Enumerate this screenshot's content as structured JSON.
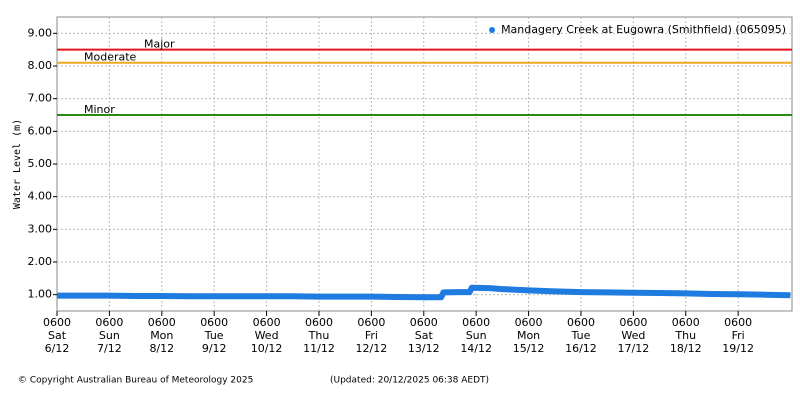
{
  "chart_data": {
    "type": "line",
    "y_label": "Water Level (m)",
    "ylim": [
      0.5,
      9.5
    ],
    "yticks": [
      {
        "value": 1,
        "label": "1.00"
      },
      {
        "value": 2,
        "label": "2.00"
      },
      {
        "value": 3,
        "label": "3.00"
      },
      {
        "value": 4,
        "label": "4.00"
      },
      {
        "value": 5,
        "label": "5.00"
      },
      {
        "value": 6,
        "label": "6.00"
      },
      {
        "value": 7,
        "label": "7.00"
      },
      {
        "value": 8,
        "label": "8.00"
      },
      {
        "value": 9,
        "label": "9.00"
      }
    ],
    "xlim": [
      "6/12 06:00",
      "20/12 06:40"
    ],
    "xticks": [
      {
        "value": "6/12 06:00",
        "label": "0600\nSat\n6/12"
      },
      {
        "value": "7/12 06:00",
        "label": "0600\nSun\n7/12"
      },
      {
        "value": "8/12 06:00",
        "label": "0600\nMon\n8/12"
      },
      {
        "value": "9/12 06:00",
        "label": "0600\nTue\n9/12"
      },
      {
        "value": "10/12 06:00",
        "label": "0600\nWed\n10/12"
      },
      {
        "value": "11/12 06:00",
        "label": "0600\nThu\n11/12"
      },
      {
        "value": "12/12 06:00",
        "label": "0600\nFri\n12/12"
      },
      {
        "value": "13/12 06:00",
        "label": "0600\nSat\n13/12"
      },
      {
        "value": "14/12 06:00",
        "label": "0600\nSun\n14/12"
      },
      {
        "value": "15/12 06:00",
        "label": "0600\nMon\n15/12"
      },
      {
        "value": "16/12 06:00",
        "label": "0600\nTue\n16/12"
      },
      {
        "value": "17/12 06:00",
        "label": "0600\nWed\n17/12"
      },
      {
        "value": "18/12 06:00",
        "label": "0600\nThu\n18/12"
      },
      {
        "value": "19/12 06:00",
        "label": "0600\nFri\n19/12"
      }
    ],
    "grid": true,
    "thresholds": [
      {
        "name": "Major",
        "value": 8.5,
        "color": "#e8141a"
      },
      {
        "name": "Moderate",
        "value": 8.1,
        "color": "#f0a81e"
      },
      {
        "name": "Minor",
        "value": 6.5,
        "color": "#2a8a12"
      }
    ],
    "legend": "top-right",
    "x": [
      "6/12 06:00",
      "6/12 18:00",
      "7/12 06:00",
      "7/12 18:00",
      "8/12 06:00",
      "8/12 18:00",
      "9/12 06:00",
      "9/12 18:00",
      "10/12 06:00",
      "10/12 18:00",
      "11/12 06:00",
      "11/12 18:00",
      "12/12 06:00",
      "12/12 18:00",
      "13/12 06:00",
      "13/12 14:00",
      "13/12 15:00",
      "13/12 22:00",
      "14/12 03:00",
      "14/12 04:00",
      "14/12 12:00",
      "14/12 18:00",
      "15/12 06:00",
      "15/12 18:00",
      "16/12 06:00",
      "16/12 18:00",
      "17/12 06:00",
      "17/12 18:00",
      "18/12 06:00",
      "18/12 18:00",
      "19/12 06:00",
      "19/12 18:00",
      "20/12 06:00"
    ],
    "series": [
      {
        "name": "Mandagery Creek at Eugowra (Smithfield) (065095)",
        "color": "#1e7be0",
        "values": [
          0.97,
          0.97,
          0.97,
          0.96,
          0.96,
          0.95,
          0.95,
          0.95,
          0.95,
          0.95,
          0.94,
          0.94,
          0.94,
          0.93,
          0.92,
          0.92,
          1.07,
          1.08,
          1.08,
          1.21,
          1.2,
          1.17,
          1.13,
          1.1,
          1.08,
          1.07,
          1.06,
          1.05,
          1.04,
          1.02,
          1.01,
          1.0,
          0.98
        ]
      }
    ]
  },
  "footer": {
    "copyright": "© Copyright Australian Bureau of Meteorology 2025",
    "updated": "(Updated: 20/12/2025 06:38 AEDT)"
  }
}
